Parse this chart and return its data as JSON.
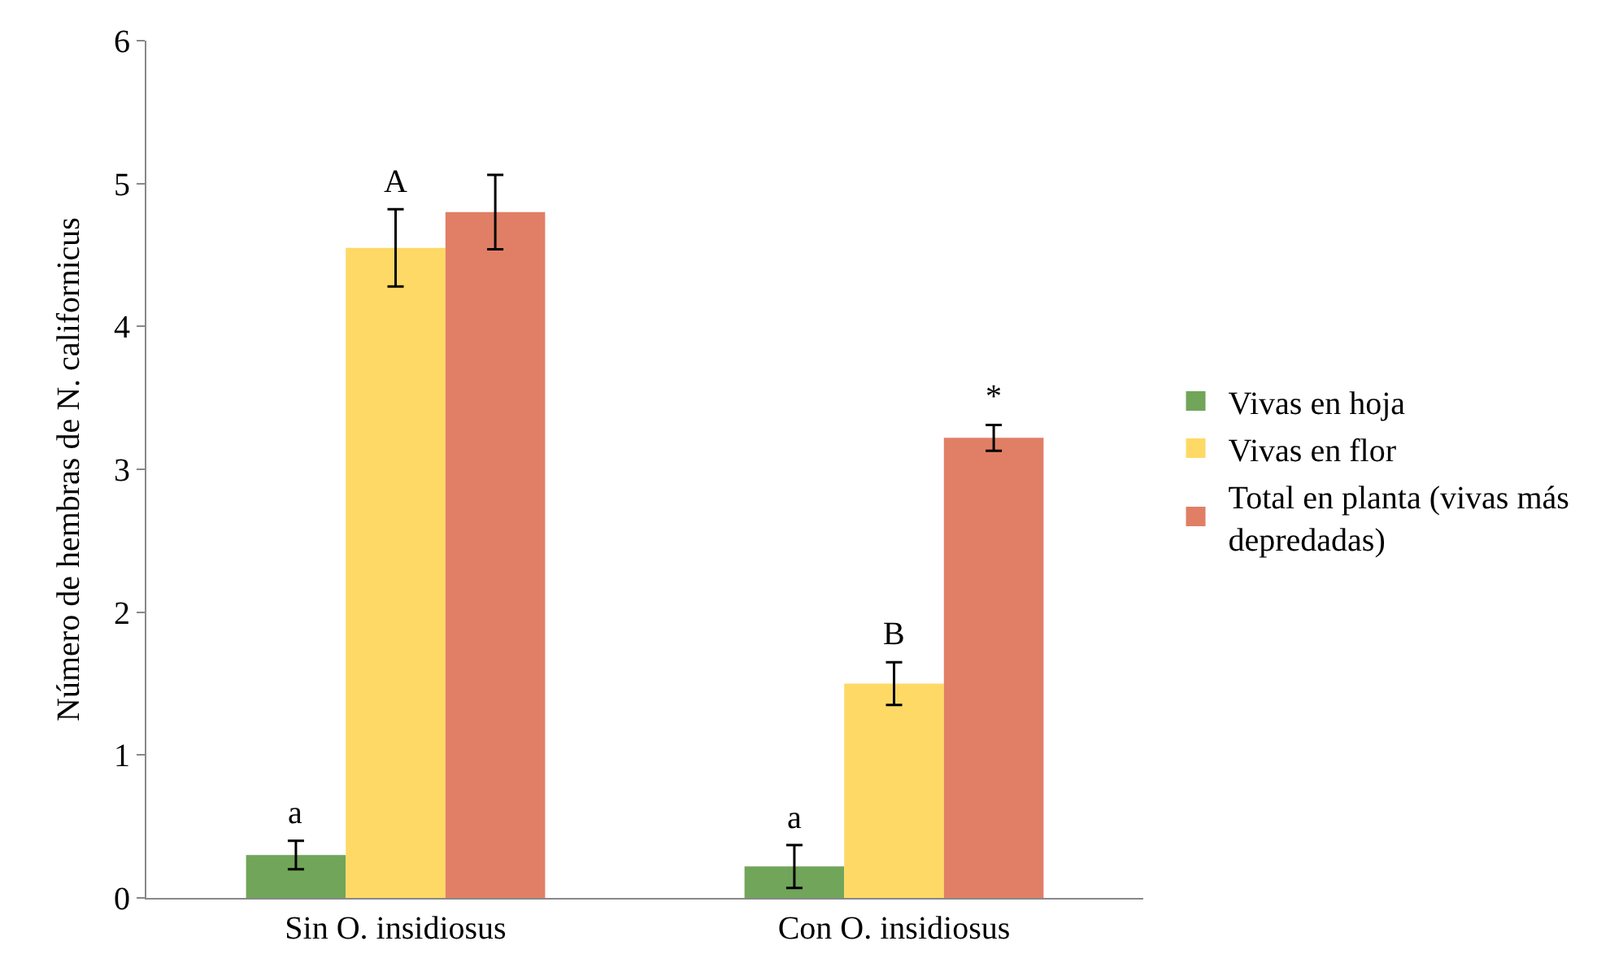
{
  "chart_data": {
    "type": "bar",
    "ylabel": "Número de hembras de N. californicus",
    "categories": [
      "Sin O. insidiosus",
      "Con O. insidiosus"
    ],
    "series": [
      {
        "name": "Vivas en hoja",
        "color": "#70a55a",
        "values": [
          0.3,
          0.22
        ],
        "errors": [
          0.1,
          0.15
        ],
        "value_labels": [
          "a",
          "a"
        ]
      },
      {
        "name": "Vivas en flor",
        "color": "#ffd966",
        "values": [
          4.55,
          1.5
        ],
        "errors": [
          0.27,
          0.15
        ],
        "value_labels": [
          "A",
          "B"
        ]
      },
      {
        "name": "Total en planta (vivas más depredadas)",
        "color": "#e07f65",
        "values": [
          4.8,
          3.22
        ],
        "errors": [
          0.26,
          0.09
        ],
        "value_labels": [
          null,
          "*"
        ]
      }
    ],
    "ylim": [
      0,
      6
    ],
    "yticks": [
      0,
      1,
      2,
      3,
      4,
      5,
      6
    ],
    "grid": false,
    "legend": "right"
  }
}
